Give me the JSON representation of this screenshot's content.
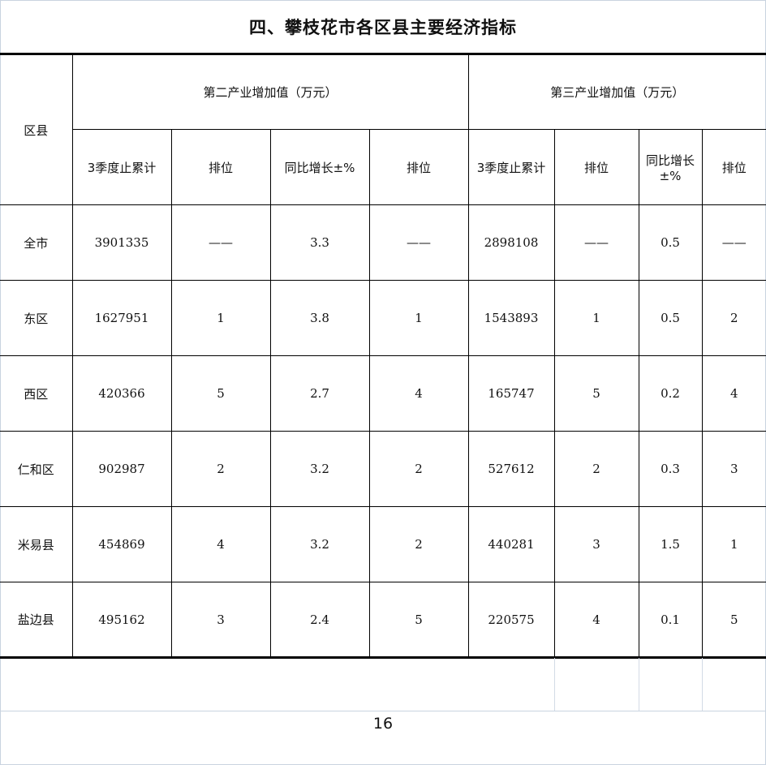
{
  "title": "四、攀枝花市各区县主要经济指标",
  "header": {
    "district": "区县",
    "group_secondary": "第二产业增加值（万元）",
    "group_tertiary": "第三产业增加值（万元）",
    "cols": [
      "3季度止累计",
      "排位",
      "同比增长±%",
      "排位",
      "3季度止累计",
      "排位",
      "同比增长±%",
      "排位"
    ]
  },
  "rows": [
    {
      "district": "全市",
      "values": [
        "3901335",
        "——",
        "3.3",
        "——",
        "2898108",
        "——",
        "0.5",
        "——"
      ]
    },
    {
      "district": "东区",
      "values": [
        "1627951",
        "1",
        "3.8",
        "1",
        "1543893",
        "1",
        "0.5",
        "2"
      ]
    },
    {
      "district": "西区",
      "values": [
        "420366",
        "5",
        "2.7",
        "4",
        "165747",
        "5",
        "0.2",
        "4"
      ]
    },
    {
      "district": "仁和区",
      "values": [
        "902987",
        "2",
        "3.2",
        "2",
        "527612",
        "2",
        "0.3",
        "3"
      ]
    },
    {
      "district": "米易县",
      "values": [
        "454869",
        "4",
        "3.2",
        "2",
        "440281",
        "3",
        "1.5",
        "1"
      ]
    },
    {
      "district": "盐边县",
      "values": [
        "495162",
        "3",
        "2.4",
        "5",
        "220575",
        "4",
        "0.1",
        "5"
      ]
    }
  ],
  "page_number": "16"
}
